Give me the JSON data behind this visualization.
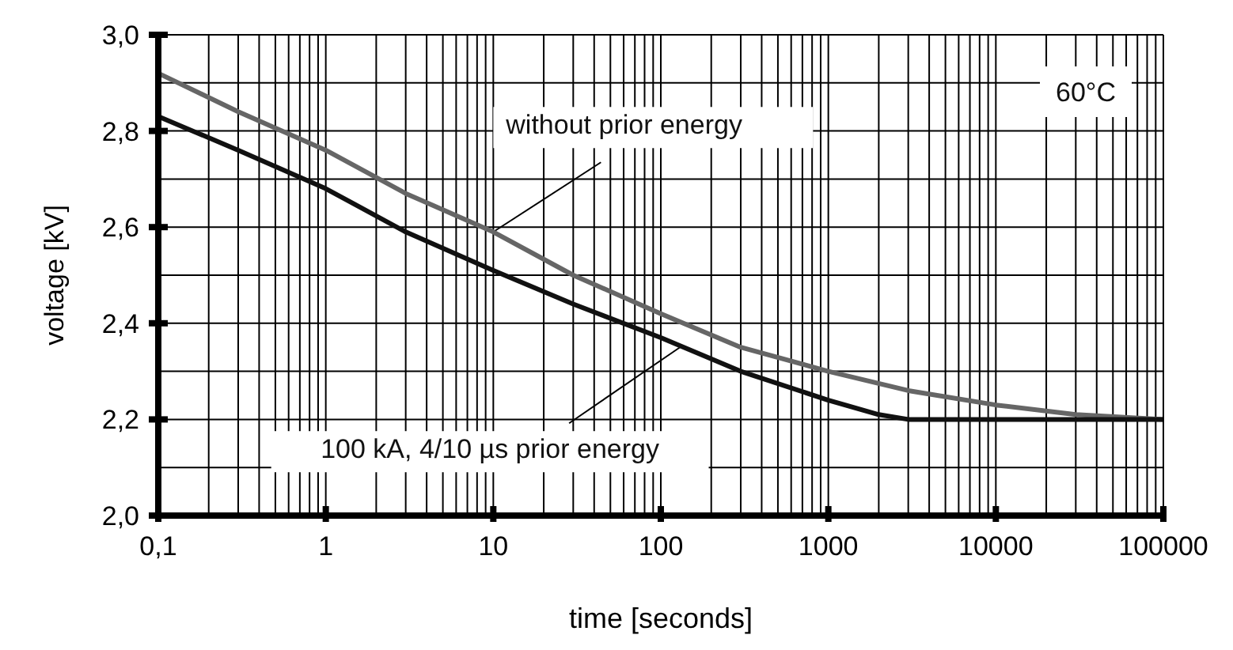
{
  "chart_data": {
    "type": "line",
    "xlabel": "time [seconds]",
    "ylabel": "voltage [kV]",
    "log": "x",
    "grid": true,
    "marker": "none",
    "line_style": "solid",
    "xlim": [
      0.1,
      100000
    ],
    "ylim": [
      2.0,
      3.0
    ],
    "xticks": [
      {
        "value": 0.1,
        "label": "0,1"
      },
      {
        "value": 0.2,
        "label": null
      },
      {
        "value": 0.3,
        "label": null
      },
      {
        "value": 0.4,
        "label": null
      },
      {
        "value": 0.5,
        "label": null
      },
      {
        "value": 0.6,
        "label": null
      },
      {
        "value": 0.7,
        "label": null
      },
      {
        "value": 0.8,
        "label": null
      },
      {
        "value": 0.9,
        "label": null
      },
      1,
      {
        "value": 2,
        "label": null
      },
      {
        "value": 3,
        "label": null
      },
      {
        "value": 4,
        "label": null
      },
      {
        "value": 5,
        "label": null
      },
      {
        "value": 6,
        "label": null
      },
      {
        "value": 7,
        "label": null
      },
      {
        "value": 8,
        "label": null
      },
      {
        "value": 9,
        "label": null
      },
      10,
      {
        "value": 20,
        "label": null
      },
      {
        "value": 30,
        "label": null
      },
      {
        "value": 40,
        "label": null
      },
      {
        "value": 50,
        "label": null
      },
      {
        "value": 60,
        "label": null
      },
      {
        "value": 70,
        "label": null
      },
      {
        "value": 80,
        "label": null
      },
      {
        "value": 90,
        "label": null
      },
      100,
      {
        "value": 200,
        "label": null
      },
      {
        "value": 300,
        "label": null
      },
      {
        "value": 400,
        "label": null
      },
      {
        "value": 500,
        "label": null
      },
      {
        "value": 600,
        "label": null
      },
      {
        "value": 700,
        "label": null
      },
      {
        "value": 800,
        "label": null
      },
      {
        "value": 900,
        "label": null
      },
      1000,
      {
        "value": 2000,
        "label": null
      },
      {
        "value": 3000,
        "label": null
      },
      {
        "value": 4000,
        "label": null
      },
      {
        "value": 5000,
        "label": null
      },
      {
        "value": 6000,
        "label": null
      },
      {
        "value": 7000,
        "label": null
      },
      {
        "value": 8000,
        "label": null
      },
      {
        "value": 9000,
        "label": null
      },
      10000,
      {
        "value": 20000,
        "label": null
      },
      {
        "value": 30000,
        "label": null
      },
      {
        "value": 40000,
        "label": null
      },
      {
        "value": 50000,
        "label": null
      },
      {
        "value": 60000,
        "label": null
      },
      {
        "value": 70000,
        "label": null
      },
      {
        "value": 80000,
        "label": null
      },
      {
        "value": 90000,
        "label": null
      },
      100000
    ],
    "yticks": [
      {
        "value": 2.0,
        "label": "2,0"
      },
      {
        "value": 2.1,
        "label": null
      },
      {
        "value": 2.2,
        "label": "2,2"
      },
      {
        "value": 2.3,
        "label": null
      },
      {
        "value": 2.4,
        "label": "2,4"
      },
      {
        "value": 2.5,
        "label": null
      },
      {
        "value": 2.6,
        "label": "2,6"
      },
      {
        "value": 2.7,
        "label": null
      },
      {
        "value": 2.8,
        "label": "2,8"
      },
      {
        "value": 2.9,
        "label": null
      },
      {
        "value": 3.0,
        "label": "3,0"
      }
    ],
    "series": [
      {
        "color": "#666666",
        "x": [
          0.1,
          0.3,
          1,
          3,
          10,
          30,
          100,
          300,
          1000,
          3000,
          10000,
          30000,
          100000
        ],
        "values": [
          2.92,
          2.84,
          2.76,
          2.67,
          2.59,
          2.5,
          2.42,
          2.35,
          2.3,
          2.26,
          2.23,
          2.21,
          2.2
        ]
      },
      {
        "color": "#111111",
        "x": [
          0.1,
          0.3,
          1,
          3,
          10,
          30,
          100,
          300,
          1000,
          2000,
          3000,
          10000,
          100000
        ],
        "values": [
          2.83,
          2.76,
          2.68,
          2.59,
          2.51,
          2.44,
          2.37,
          2.3,
          2.24,
          2.21,
          2.2,
          2.2,
          2.2
        ]
      }
    ],
    "annotations": [
      {
        "text": "without prior energy",
        "x": 10,
        "y": 2.59
      },
      {
        "text": "100 kA, 4/10 µs prior energy",
        "x": 130,
        "y": 2.35
      },
      "60°C"
    ]
  }
}
